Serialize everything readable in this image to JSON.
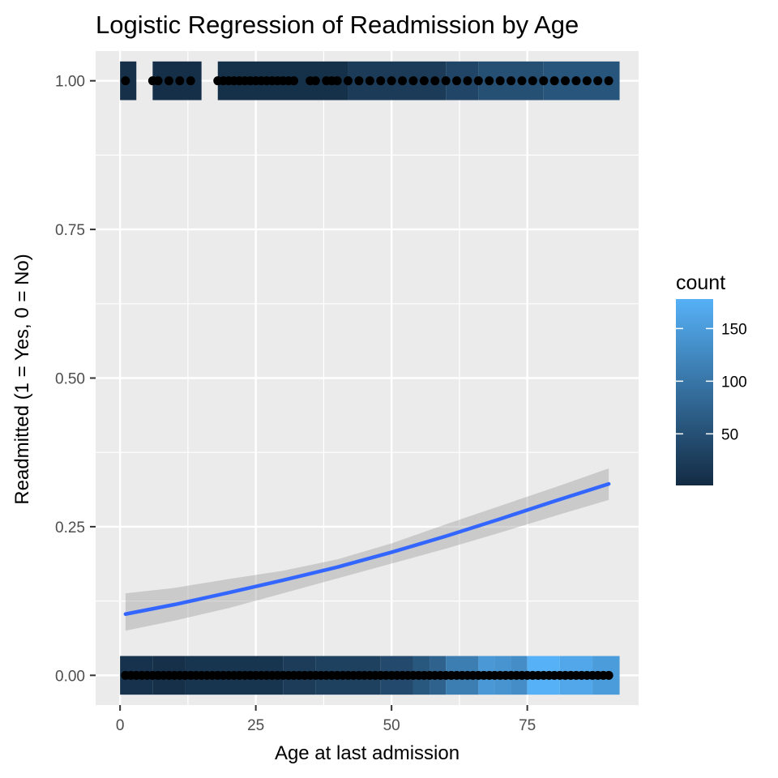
{
  "chart_data": {
    "type": "scatter",
    "title": "Logistic Regression of Readmission by Age",
    "xlabel": "Age at last admission",
    "ylabel": "Readmitted (1 = Yes, 0 = No)",
    "xlim": [
      -4.5,
      95.5
    ],
    "ylim": [
      -0.05,
      1.05
    ],
    "x_ticks": [
      {
        "value": 0,
        "label": "0"
      },
      {
        "value": 25,
        "label": "25"
      },
      {
        "value": 50,
        "label": "50"
      },
      {
        "value": 75,
        "label": "75"
      }
    ],
    "y_ticks": [
      {
        "value": 0,
        "label": "0.00"
      },
      {
        "value": 0.25,
        "label": "0.25"
      },
      {
        "value": 0.5,
        "label": "0.50"
      },
      {
        "value": 0.75,
        "label": "0.75"
      },
      {
        "value": 1,
        "label": "1.00"
      }
    ],
    "grid": true,
    "legend": {
      "title": "count",
      "position": "right",
      "range": [
        1,
        178
      ],
      "breaks": [
        {
          "value": 50,
          "label": "50"
        },
        {
          "value": 100,
          "label": "100"
        },
        {
          "value": 150,
          "label": "150"
        }
      ],
      "low_color": "#132B43",
      "high_color": "#56B1F7"
    },
    "points_y1_ages": [
      1,
      6,
      7,
      9,
      11,
      13,
      18,
      19,
      20,
      21,
      22,
      23,
      24,
      25,
      26,
      27,
      28,
      29,
      30,
      31,
      32,
      35,
      36,
      38,
      39,
      40,
      42,
      44,
      46,
      48,
      50,
      52,
      54,
      56,
      58,
      60,
      62,
      64,
      66,
      68,
      70,
      72,
      74,
      76,
      78,
      80,
      82,
      84,
      86,
      88,
      90
    ],
    "points_y0_age_range": [
      1,
      90
    ],
    "bins_y1": [
      {
        "x0": 0,
        "x1": 3,
        "count": 8
      },
      {
        "x0": 6,
        "x1": 15,
        "count": 6
      },
      {
        "x0": 18,
        "x1": 42,
        "count": 7
      },
      {
        "x0": 42,
        "x1": 60,
        "count": 22
      },
      {
        "x0": 60,
        "x1": 66,
        "count": 35
      },
      {
        "x0": 66,
        "x1": 78,
        "count": 48
      },
      {
        "x0": 78,
        "x1": 92,
        "count": 56
      }
    ],
    "bins_y0": [
      {
        "x0": 0,
        "x1": 6,
        "count": 10
      },
      {
        "x0": 6,
        "x1": 12,
        "count": 8
      },
      {
        "x0": 12,
        "x1": 30,
        "count": 14
      },
      {
        "x0": 30,
        "x1": 36,
        "count": 24
      },
      {
        "x0": 36,
        "x1": 48,
        "count": 30
      },
      {
        "x0": 48,
        "x1": 54,
        "count": 42
      },
      {
        "x0": 54,
        "x1": 57,
        "count": 60
      },
      {
        "x0": 57,
        "x1": 60,
        "count": 75
      },
      {
        "x0": 60,
        "x1": 66,
        "count": 110
      },
      {
        "x0": 66,
        "x1": 69,
        "count": 145
      },
      {
        "x0": 69,
        "x1": 72,
        "count": 140
      },
      {
        "x0": 72,
        "x1": 75,
        "count": 130
      },
      {
        "x0": 75,
        "x1": 81,
        "count": 178
      },
      {
        "x0": 81,
        "x1": 87,
        "count": 165
      },
      {
        "x0": 87,
        "x1": 92,
        "count": 150
      }
    ],
    "fit_line": {
      "color": "#3366FF",
      "x": [
        1,
        10,
        20,
        30,
        40,
        50,
        60,
        70,
        80,
        90
      ],
      "y": [
        0.103,
        0.119,
        0.139,
        0.16,
        0.182,
        0.207,
        0.234,
        0.263,
        0.293,
        0.322
      ],
      "ci_low": [
        0.075,
        0.092,
        0.113,
        0.138,
        0.163,
        0.188,
        0.213,
        0.24,
        0.268,
        0.295
      ],
      "ci_high": [
        0.138,
        0.147,
        0.162,
        0.176,
        0.195,
        0.222,
        0.254,
        0.285,
        0.316,
        0.348
      ]
    }
  }
}
